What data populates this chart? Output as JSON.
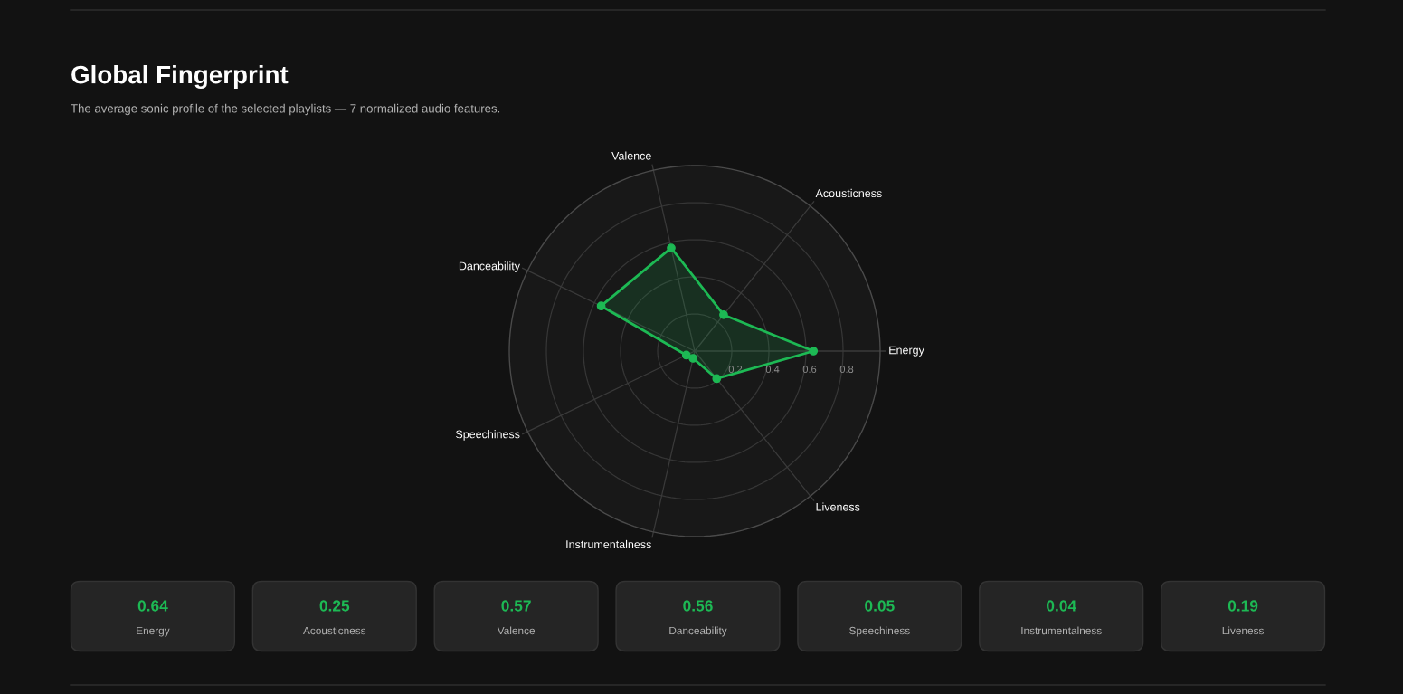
{
  "chart_data": [
    {
      "type": "radar",
      "title": "Global Fingerprint",
      "subtitle": "The average sonic profile of the selected playlists — 7 normalized audio features.",
      "categories": [
        "Valence",
        "Acousticness",
        "Energy",
        "Liveness",
        "Instrumentalness",
        "Speechiness",
        "Danceability"
      ],
      "series": [
        {
          "color": "#1db954",
          "values": [
            0.57,
            0.25,
            0.64,
            0.19,
            0.04,
            0.05,
            0.56
          ]
        }
      ],
      "ylim": [
        0,
        1
      ],
      "yticks": [
        0.2,
        0.4,
        0.6,
        0.8
      ],
      "grid": true,
      "marker": "circle",
      "line_style": "solid"
    },
    {
      "type": "other",
      "categories": [
        "Energy",
        "Acousticness",
        "Valence",
        "Danceability",
        "Speechiness",
        "Instrumentalness",
        "Liveness"
      ],
      "series": [
        {
          "color": "#252525",
          "values": [
            0.64,
            0.25,
            0.57,
            0.56,
            0.05,
            0.04,
            0.19
          ]
        }
      ],
      "data_labels": true
    }
  ]
}
